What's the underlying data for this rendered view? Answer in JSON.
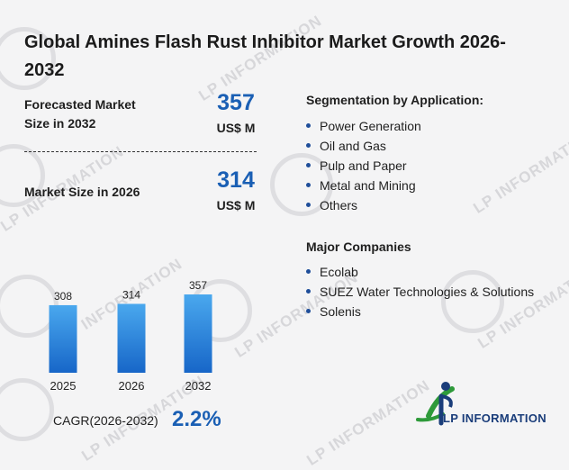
{
  "title": "Global Amines Flash Rust Inhibitor Market Growth 2026-2032",
  "watermark": "LP INFORMATION",
  "stats": {
    "forecast_label": "Forecasted Market Size in 2032",
    "forecast_value": "357",
    "forecast_unit": "US$ M",
    "current_label": "Market Size in 2026",
    "current_value": "314",
    "current_unit": "US$ M"
  },
  "segmentation": {
    "heading": "Segmentation by Application:",
    "items": [
      "Power Generation",
      "Oil and Gas",
      "Pulp and Paper",
      "Metal and Mining",
      "Others"
    ]
  },
  "companies": {
    "heading": "Major Companies",
    "items": [
      "Ecolab",
      "SUEZ Water Technologies & Solutions",
      "Solenis"
    ]
  },
  "cagr": {
    "label": "CAGR(2026-2032)",
    "value": "2.2%"
  },
  "logo": {
    "text": "LP INFORMATION"
  },
  "colors": {
    "accent": "#1a5fb4",
    "bar_top": "#4aa8ee",
    "bar_bottom": "#1766c8",
    "logo_green": "#2e9a3a"
  },
  "chart_data": {
    "type": "bar",
    "categories": [
      "2025",
      "2026",
      "2032"
    ],
    "values": [
      308,
      314,
      357
    ],
    "ylim": [
      0,
      357
    ],
    "title": "",
    "xlabel": "",
    "ylabel": "",
    "grid": false,
    "data_labels": true
  }
}
